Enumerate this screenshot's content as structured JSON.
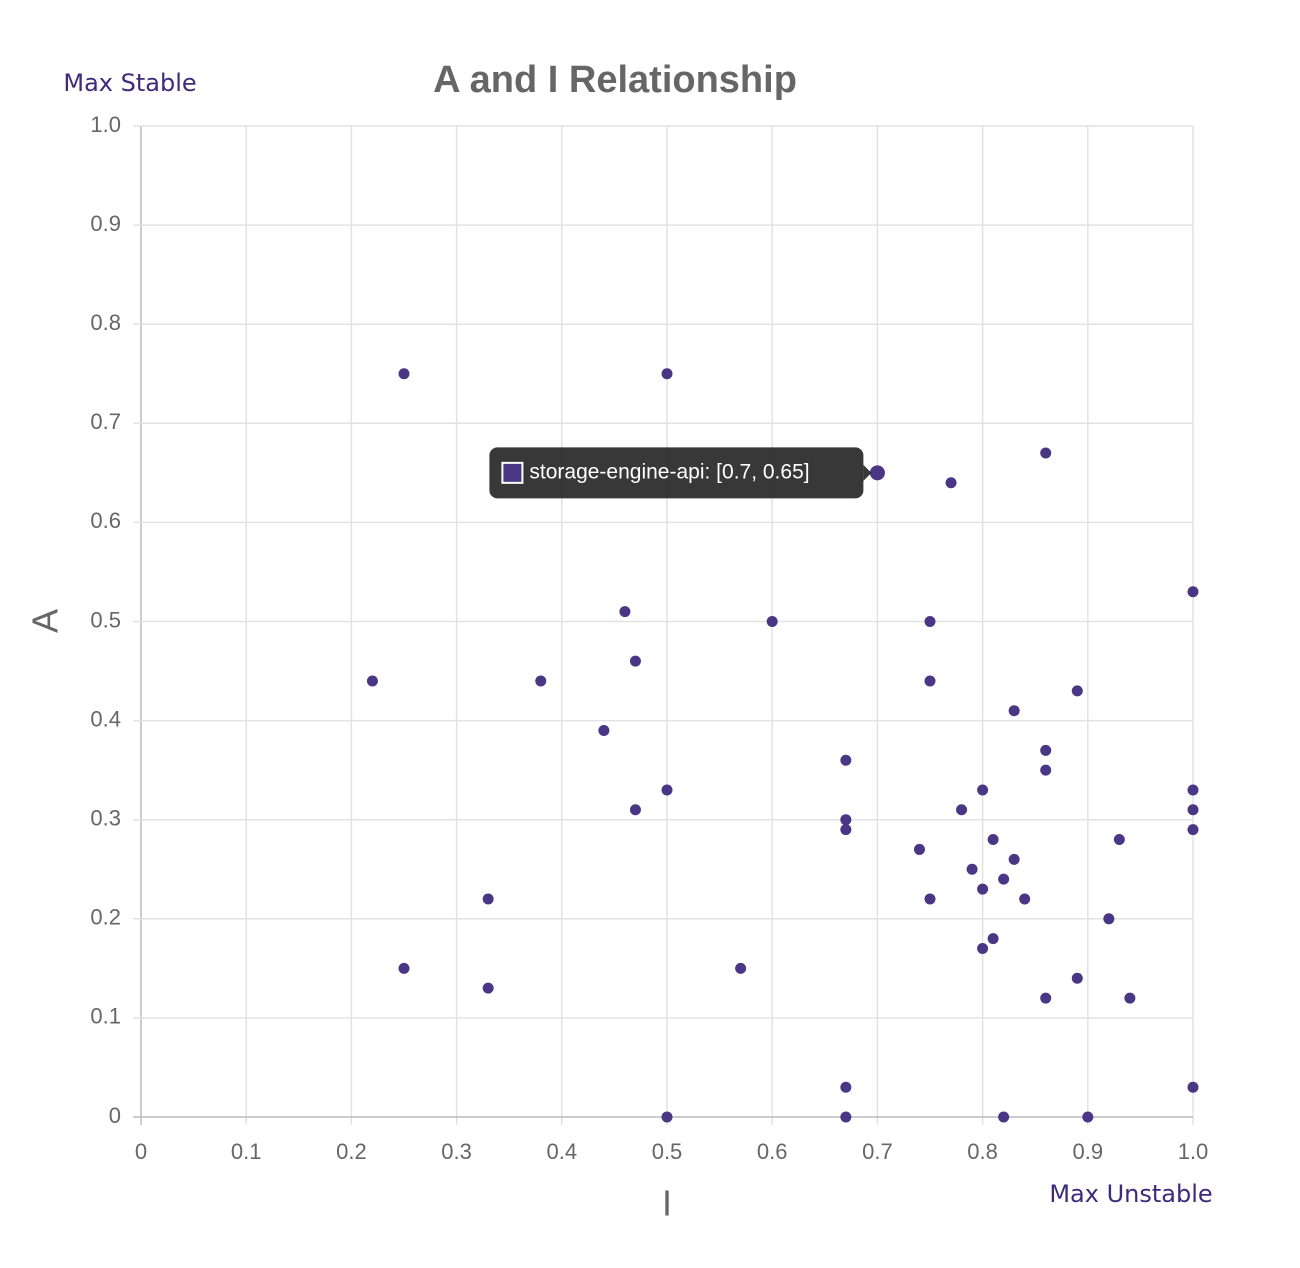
{
  "chart_data": {
    "type": "scatter",
    "title": "A and I Relationship",
    "x_label": "I",
    "y_label": "A",
    "annotations": [
      "Max Stable",
      "Max Unstable"
    ],
    "tooltip": "storage-engine-api: [0.7, 0.65]",
    "tooltip_point": 2,
    "color": "#4b3585",
    "grid": true,
    "xlim": [
      0,
      1
    ],
    "ylim": [
      0,
      1
    ],
    "xticks": [
      0,
      0.1,
      0.2,
      0.3,
      0.4,
      0.5,
      0.6,
      0.7,
      0.8,
      0.9,
      {
        "value": 1,
        "label": "1.0"
      }
    ],
    "yticks": [
      0,
      0.1,
      0.2,
      0.3,
      0.4,
      0.5,
      0.6,
      0.7,
      0.8,
      0.9,
      {
        "value": 1,
        "label": "1.0"
      }
    ],
    "x": [
      0.25,
      0.5,
      0.7,
      0.77,
      0.86,
      1.0,
      0.46,
      0.6,
      0.75,
      0.22,
      0.38,
      0.47,
      0.75,
      0.89,
      0.83,
      0.44,
      0.67,
      0.86,
      0.86,
      0.5,
      0.47,
      0.8,
      0.78,
      1.0,
      1.0,
      1.0,
      0.67,
      0.67,
      0.81,
      0.93,
      0.74,
      0.83,
      0.79,
      0.82,
      0.8,
      0.33,
      0.75,
      0.84,
      0.92,
      0.81,
      0.8,
      0.25,
      0.57,
      0.33,
      0.89,
      0.86,
      0.94,
      0.67,
      1.0,
      0.5,
      0.67,
      0.82,
      0.9
    ],
    "values": [
      0.75,
      0.75,
      0.65,
      0.64,
      0.67,
      0.53,
      0.51,
      0.5,
      0.5,
      0.44,
      0.44,
      0.46,
      0.44,
      0.43,
      0.41,
      0.39,
      0.36,
      0.37,
      0.35,
      0.33,
      0.31,
      0.33,
      0.31,
      0.33,
      0.31,
      0.29,
      0.3,
      0.29,
      0.28,
      0.28,
      0.27,
      0.26,
      0.25,
      0.24,
      0.23,
      0.22,
      0.22,
      0.22,
      0.2,
      0.18,
      0.17,
      0.15,
      0.15,
      0.13,
      0.14,
      0.12,
      0.12,
      0.03,
      0.03,
      0,
      0,
      0,
      0
    ]
  }
}
